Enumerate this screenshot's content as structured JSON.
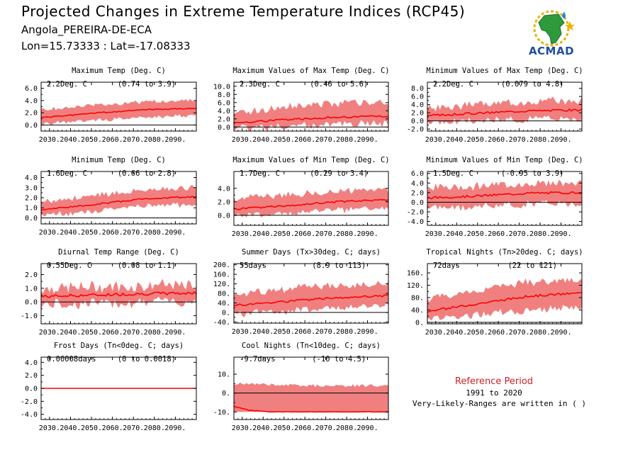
{
  "header": {
    "title": "Projected Changes in Extreme Temperature Indices (RCP45)",
    "location": "Angola_PEREIRA-DE-ECA",
    "coords": "Lon=15.73333 : Lat=-17.08333"
  },
  "logo": {
    "text": "ACMAD",
    "icon": "africa-map-logo"
  },
  "legend": {
    "title": "Reference Period",
    "years": "1991 to 2020",
    "note": "Very-Likely-Ranges are written in ( )"
  },
  "colors": {
    "band": "#f08080",
    "line": "#ff0000",
    "zero": "#000000"
  },
  "chart_data": [
    {
      "type": "area",
      "title": "Maximum Temp (Deg. C)",
      "value": "2.2Deg. C",
      "range": "(0.74 to 3.9)",
      "xlim": [
        2026,
        2100
      ],
      "ylim": [
        -1.0,
        7.0
      ],
      "yticks": [
        0,
        2,
        4,
        6
      ],
      "ytick_labels": [
        "0.0",
        "2.0",
        "4.0",
        "6.0"
      ],
      "xticks": [
        2030,
        2040,
        2050,
        2060,
        2070,
        2080,
        2090
      ],
      "xtick_labels": [
        "2030.",
        "2040.",
        "2050.",
        "2060.",
        "2070.",
        "2080.",
        "2090."
      ],
      "median": [
        [
          2026,
          1.2
        ],
        [
          2050,
          1.9
        ],
        [
          2075,
          2.5
        ],
        [
          2100,
          2.7
        ]
      ],
      "low": [
        [
          2026,
          0.2
        ],
        [
          2050,
          0.7
        ],
        [
          2075,
          1.3
        ],
        [
          2100,
          1.5
        ]
      ],
      "high": [
        [
          2026,
          2.4
        ],
        [
          2050,
          3.2
        ],
        [
          2075,
          3.8
        ],
        [
          2100,
          4.0
        ]
      ],
      "noise": 0.35,
      "seed": 1
    },
    {
      "type": "area",
      "title": "Maximum Values of Max Temp (Deg. C)",
      "value": "2.3Deg. C",
      "range": "(0.46 to 5.6)",
      "xlim": [
        2026,
        2100
      ],
      "ylim": [
        -1.0,
        11.0
      ],
      "yticks": [
        0,
        2,
        4,
        6,
        8,
        10
      ],
      "ytick_labels": [
        "0.0",
        "2.0",
        "4.0",
        "6.0",
        "8.0",
        "10.0"
      ],
      "xticks": [
        2030,
        2040,
        2050,
        2060,
        2070,
        2080,
        2090
      ],
      "xtick_labels": [
        "2030.",
        "2040.",
        "2050.",
        "2060.",
        "2070.",
        "2080.",
        "2090."
      ],
      "median": [
        [
          2026,
          1.0
        ],
        [
          2050,
          1.8
        ],
        [
          2075,
          2.4
        ],
        [
          2100,
          2.6
        ]
      ],
      "low": [
        [
          2026,
          -0.2
        ],
        [
          2050,
          0.2
        ],
        [
          2075,
          0.7
        ],
        [
          2100,
          0.9
        ]
      ],
      "high": [
        [
          2026,
          3.5
        ],
        [
          2050,
          5.0
        ],
        [
          2075,
          5.8
        ],
        [
          2100,
          6.0
        ]
      ],
      "noise": 1.0,
      "seed": 2
    },
    {
      "type": "area",
      "title": "Minimum Values of Max Temp (Deg. C)",
      "value": "2.2Deg. C",
      "range": "(0.079 to 4.8)",
      "xlim": [
        2026,
        2100
      ],
      "ylim": [
        -2.5,
        9.5
      ],
      "yticks": [
        -2,
        0,
        2,
        4,
        6,
        8
      ],
      "ytick_labels": [
        "-2.0",
        "0.0",
        "2.0",
        "4.0",
        "6.0",
        "8.0"
      ],
      "xticks": [
        2030,
        2040,
        2050,
        2060,
        2070,
        2080,
        2090
      ],
      "xtick_labels": [
        "2030.",
        "2040.",
        "2050.",
        "2060.",
        "2070.",
        "2080.",
        "2090."
      ],
      "median": [
        [
          2026,
          1.3
        ],
        [
          2050,
          1.9
        ],
        [
          2075,
          2.5
        ],
        [
          2100,
          2.7
        ]
      ],
      "low": [
        [
          2026,
          -0.5
        ],
        [
          2050,
          0.0
        ],
        [
          2075,
          0.5
        ],
        [
          2100,
          0.7
        ]
      ],
      "high": [
        [
          2026,
          3.0
        ],
        [
          2050,
          4.0
        ],
        [
          2075,
          4.8
        ],
        [
          2100,
          5.0
        ]
      ],
      "noise": 1.0,
      "seed": 3
    },
    {
      "type": "area",
      "title": "Minimum Temp (Deg. C)",
      "value": "1.6Deg. C",
      "range": "(0.66 to 2.8)",
      "xlim": [
        2026,
        2100
      ],
      "ylim": [
        -0.6,
        4.6
      ],
      "yticks": [
        0,
        1,
        2,
        3,
        4
      ],
      "ytick_labels": [
        "0.0",
        "1.0",
        "2.0",
        "3.0",
        "4.0"
      ],
      "xticks": [
        2030,
        2040,
        2050,
        2060,
        2070,
        2080,
        2090
      ],
      "xtick_labels": [
        "2030.",
        "2040.",
        "2050.",
        "2060.",
        "2070.",
        "2080.",
        "2090."
      ],
      "median": [
        [
          2026,
          0.8
        ],
        [
          2050,
          1.3
        ],
        [
          2075,
          1.9
        ],
        [
          2100,
          2.1
        ]
      ],
      "low": [
        [
          2026,
          0.3
        ],
        [
          2050,
          0.6
        ],
        [
          2075,
          1.2
        ],
        [
          2100,
          1.3
        ]
      ],
      "high": [
        [
          2026,
          1.6
        ],
        [
          2050,
          2.2
        ],
        [
          2075,
          2.8
        ],
        [
          2100,
          3.0
        ]
      ],
      "noise": 0.3,
      "seed": 4
    },
    {
      "type": "area",
      "title": "Maximum Values of Min Temp (Deg. C)",
      "value": "1.7Deg. C",
      "range": "(0.29 to 3.4)",
      "xlim": [
        2026,
        2100
      ],
      "ylim": [
        -1.5,
        6.5
      ],
      "yticks": [
        0,
        2,
        4
      ],
      "ytick_labels": [
        "0.0",
        "2.0",
        "4.0"
      ],
      "xticks": [
        2030,
        2040,
        2050,
        2060,
        2070,
        2080,
        2090
      ],
      "xtick_labels": [
        "2030.",
        "2040.",
        "2050.",
        "2060.",
        "2070.",
        "2080.",
        "2090."
      ],
      "median": [
        [
          2026,
          0.9
        ],
        [
          2050,
          1.4
        ],
        [
          2075,
          2.0
        ],
        [
          2100,
          2.3
        ]
      ],
      "low": [
        [
          2026,
          -0.1
        ],
        [
          2050,
          0.3
        ],
        [
          2075,
          0.8
        ],
        [
          2100,
          1.0
        ]
      ],
      "high": [
        [
          2026,
          2.4
        ],
        [
          2050,
          3.0
        ],
        [
          2075,
          3.5
        ],
        [
          2100,
          3.8
        ]
      ],
      "noise": 0.55,
      "seed": 5
    },
    {
      "type": "area",
      "title": "Minimum Values of Min Temp (Deg. C)",
      "value": "1.5Deg. C",
      "range": "(-0.95 to 3.9)",
      "xlim": [
        2026,
        2100
      ],
      "ylim": [
        -4.8,
        6.4
      ],
      "yticks": [
        -4,
        -2,
        0,
        2,
        4,
        6
      ],
      "ytick_labels": [
        "-4.0",
        "-2.0",
        "0.0",
        "2.0",
        "4.0",
        "6.0"
      ],
      "xticks": [
        2030,
        2040,
        2050,
        2060,
        2070,
        2080,
        2090
      ],
      "xtick_labels": [
        "2030.",
        "2040.",
        "2050.",
        "2060.",
        "2070.",
        "2080.",
        "2090."
      ],
      "median": [
        [
          2026,
          0.9
        ],
        [
          2050,
          1.3
        ],
        [
          2075,
          1.9
        ],
        [
          2100,
          2.0
        ]
      ],
      "low": [
        [
          2026,
          -1.2
        ],
        [
          2050,
          -0.9
        ],
        [
          2075,
          -0.4
        ],
        [
          2100,
          -0.2
        ]
      ],
      "high": [
        [
          2026,
          3.0
        ],
        [
          2050,
          3.4
        ],
        [
          2075,
          3.9
        ],
        [
          2100,
          4.1
        ]
      ],
      "noise": 0.9,
      "seed": 6
    },
    {
      "type": "area",
      "title": "Diurnal Temp Range (Deg. C)",
      "value": "0.55Deg. C",
      "range": "(0.08 to 1.1)",
      "xlim": [
        2026,
        2100
      ],
      "ylim": [
        -1.6,
        2.8
      ],
      "yticks": [
        -1,
        0,
        1,
        2
      ],
      "ytick_labels": [
        "-1.0",
        "0.0",
        "1.0",
        "2.0"
      ],
      "xticks": [
        2030,
        2040,
        2050,
        2060,
        2070,
        2080,
        2090
      ],
      "xtick_labels": [
        "2030.",
        "2040.",
        "2050.",
        "2060.",
        "2070.",
        "2080.",
        "2090."
      ],
      "median": [
        [
          2026,
          0.4
        ],
        [
          2050,
          0.5
        ],
        [
          2075,
          0.6
        ],
        [
          2100,
          0.65
        ]
      ],
      "low": [
        [
          2026,
          -0.2
        ],
        [
          2050,
          -0.1
        ],
        [
          2075,
          0.0
        ],
        [
          2100,
          0.05
        ]
      ],
      "high": [
        [
          2026,
          1.0
        ],
        [
          2050,
          1.1
        ],
        [
          2075,
          1.2
        ],
        [
          2100,
          1.2
        ]
      ],
      "noise": 0.45,
      "seed": 7
    },
    {
      "type": "area",
      "title": "Summer Days (Tx>30deg. C; days)",
      "value": "55days",
      "range": "(8.9 to 113)",
      "xlim": [
        2026,
        2100
      ],
      "ylim": [
        -45,
        205
      ],
      "yticks": [
        -40,
        0,
        40,
        80,
        120,
        160,
        200
      ],
      "ytick_labels": [
        "-40.",
        "0.",
        "40.",
        "80.",
        "120.",
        "160.",
        "200."
      ],
      "xticks": [
        2030,
        2040,
        2050,
        2060,
        2070,
        2080,
        2090
      ],
      "xtick_labels": [
        "2030.",
        "2040.",
        "2050.",
        "2060.",
        "2070.",
        "2080.",
        "2090."
      ],
      "median": [
        [
          2026,
          30
        ],
        [
          2050,
          45
        ],
        [
          2075,
          62
        ],
        [
          2100,
          70
        ]
      ],
      "low": [
        [
          2026,
          -5
        ],
        [
          2050,
          5
        ],
        [
          2075,
          20
        ],
        [
          2100,
          25
        ]
      ],
      "high": [
        [
          2026,
          75
        ],
        [
          2050,
          95
        ],
        [
          2075,
          115
        ],
        [
          2100,
          120
        ]
      ],
      "noise": 18,
      "seed": 8
    },
    {
      "type": "area",
      "title": "Tropical Nights (Tn>20deg. C; days)",
      "value": "72days",
      "range": "(22 to 121)",
      "xlim": [
        2026,
        2100
      ],
      "ylim": [
        -5,
        190
      ],
      "yticks": [
        0,
        40,
        80,
        120,
        160
      ],
      "ytick_labels": [
        "0.",
        "40.",
        "80.",
        "120.",
        "160."
      ],
      "xticks": [
        2030,
        2040,
        2050,
        2060,
        2070,
        2080,
        2090
      ],
      "xtick_labels": [
        "2030.",
        "2040.",
        "2050.",
        "2060.",
        "2070.",
        "2080.",
        "2090."
      ],
      "median": [
        [
          2026,
          35
        ],
        [
          2050,
          60
        ],
        [
          2075,
          85
        ],
        [
          2100,
          95
        ]
      ],
      "low": [
        [
          2026,
          10
        ],
        [
          2050,
          25
        ],
        [
          2075,
          40
        ],
        [
          2100,
          45
        ]
      ],
      "high": [
        [
          2026,
          75
        ],
        [
          2050,
          105
        ],
        [
          2075,
          130
        ],
        [
          2100,
          140
        ]
      ],
      "noise": 14,
      "seed": 9
    },
    {
      "type": "area",
      "title": "Frost Days (Tn<0deg. C; days)",
      "value": "0.00008days",
      "range": "(0 to 0.0018)",
      "xlim": [
        2026,
        2100
      ],
      "ylim": [
        -4.8,
        4.8
      ],
      "yticks": [
        -4,
        -2,
        0,
        2,
        4
      ],
      "ytick_labels": [
        "-4.0",
        "-2.0",
        "0.0",
        "2.0",
        "4.0"
      ],
      "xticks": [
        2030,
        2040,
        2050,
        2060,
        2070,
        2080,
        2090
      ],
      "xtick_labels": [
        "2030.",
        "2040.",
        "2050.",
        "2060.",
        "2070.",
        "2080.",
        "2090."
      ],
      "median": [
        [
          2026,
          0.0
        ],
        [
          2100,
          0.0
        ]
      ],
      "low": [
        [
          2026,
          0.0
        ],
        [
          2100,
          0.0
        ]
      ],
      "high": [
        [
          2026,
          0.0
        ],
        [
          2100,
          0.0
        ]
      ],
      "noise": 0,
      "seed": 10
    },
    {
      "type": "area",
      "title": "Cool Nights (Tn<10deg. C; days)",
      "value": "-9.7days",
      "range": "(-10 to 4.5)",
      "xlim": [
        2026,
        2100
      ],
      "ylim": [
        -14,
        19
      ],
      "yticks": [
        -10,
        0,
        10
      ],
      "ytick_labels": [
        "-10.",
        "0.",
        "10."
      ],
      "xticks": [
        2030,
        2040,
        2050,
        2060,
        2070,
        2080,
        2090
      ],
      "xtick_labels": [
        "2030.",
        "2040.",
        "2050.",
        "2060.",
        "2070.",
        "2080.",
        "2090."
      ],
      "median": [
        [
          2026,
          -7
        ],
        [
          2033,
          -9
        ],
        [
          2040,
          -9.7
        ],
        [
          2045,
          -10
        ],
        [
          2100,
          -10
        ]
      ],
      "low": [
        [
          2026,
          -10
        ],
        [
          2100,
          -10
        ]
      ],
      "high": [
        [
          2026,
          5
        ],
        [
          2060,
          4
        ],
        [
          2100,
          4
        ]
      ],
      "noise": 0.8,
      "seed": 11
    }
  ]
}
